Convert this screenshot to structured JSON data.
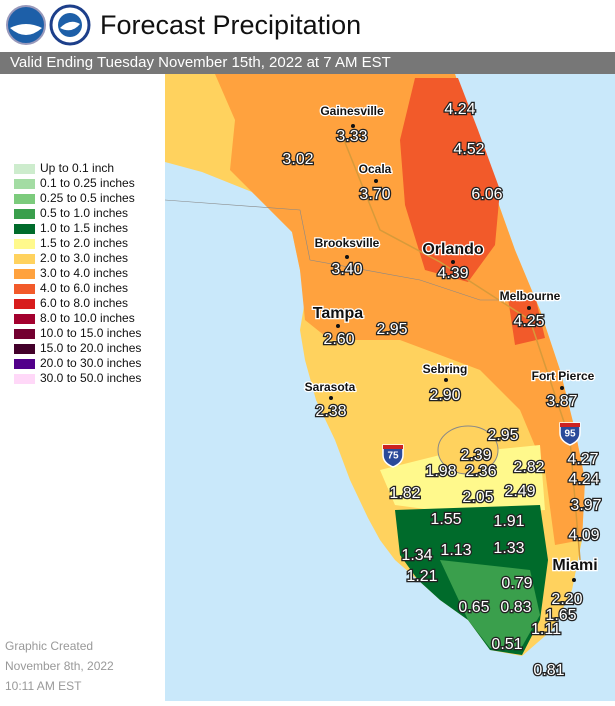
{
  "header": {
    "title": "Forecast Precipitation",
    "subtitle": "Valid Ending Tuesday November 15th, 2022 at 7 AM EST"
  },
  "legend": [
    "Up to 0.1 inch",
    "0.1 to 0.25 inches",
    "0.25 to 0.5 inches",
    "0.5 to 1.0 inches",
    "1.0 to 1.5 inches",
    "1.5 to 2.0 inches",
    "2.0 to 3.0 inches",
    "3.0 to 4.0 inches",
    "4.0 to 6.0 inches",
    "6.0 to 8.0 inches",
    "8.0 to 10.0 inches",
    "10.0 to 15.0 inches",
    "15.0 to 20.0 inches",
    "20.0 to 30.0 inches",
    "30.0 to 50.0 inches"
  ],
  "legend_colors": [
    "#cdeccd",
    "#a3dca3",
    "#7ccb7c",
    "#3a9f4c",
    "#006b2b",
    "#fff98c",
    "#ffd25e",
    "#ffa23e",
    "#f25a2a",
    "#d81c1c",
    "#a3002e",
    "#730030",
    "#43002a",
    "#52008a",
    "#ffd8f8"
  ],
  "cities": [
    "Gainesville",
    "Ocala",
    "Brooksville",
    "Orlando",
    "Melbourne",
    "Tampa",
    "Sarasota",
    "Sebring",
    "Fort Pierce",
    "Miami"
  ],
  "amounts": [
    "4.24",
    "4.52",
    "3.33",
    "3.02",
    "3.70",
    "6.06",
    "3.40",
    "4.39",
    "4.25",
    "2.95",
    "2.60",
    "2.90",
    "2.38",
    "3.87",
    "2.95",
    "2.39",
    "1.98",
    "2.36",
    "2.82",
    "4.27",
    "4.24",
    "2.49",
    "1.82",
    "2.05",
    "3.97",
    "1.55",
    "1.91",
    "4.09",
    "1.34",
    "1.13",
    "1.33",
    "1.21",
    "0.79",
    "2.20",
    "0.65",
    "0.83",
    "1.65",
    "1.11",
    "0.51",
    "0.81"
  ],
  "highways": [
    "75",
    "95"
  ],
  "footer": [
    "Graphic Created",
    "November 8th, 2022",
    "10:11 AM EST"
  ]
}
